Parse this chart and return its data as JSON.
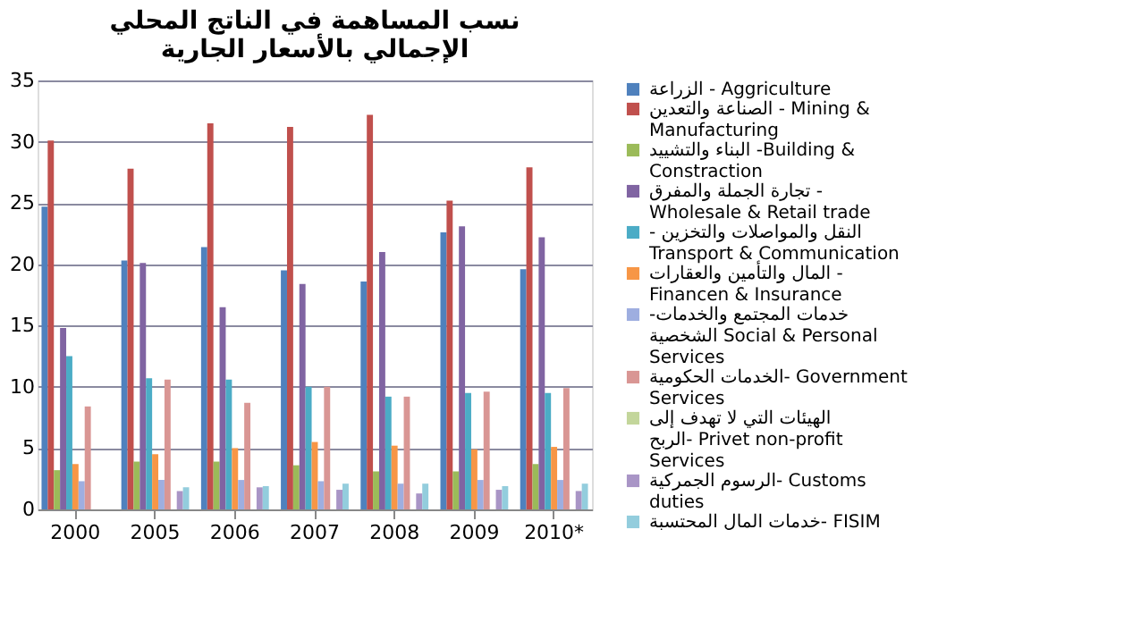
{
  "chart_data": {
    "type": "bar",
    "title": "نسب المساهمة في الناتج المحلي الإجمالي بالأسعار الجارية",
    "categories": [
      "2000",
      "2005",
      "2006",
      "2007",
      "2008",
      "2009",
      "2010*"
    ],
    "ylim": [
      0,
      35
    ],
    "yticks": [
      0,
      5,
      10,
      15,
      20,
      25,
      30,
      35
    ],
    "grid": "y",
    "legend": "right",
    "series": [
      {
        "name": "الزراعة - Aggriculture",
        "color": "#4f81bd",
        "values": [
          24.7,
          20.3,
          21.4,
          19.5,
          18.6,
          22.6,
          19.6
        ]
      },
      {
        "name": "الصناعة والتعدين - Mining & Manufacturing",
        "color": "#c0504d",
        "values": [
          30.1,
          27.8,
          31.5,
          31.2,
          32.2,
          25.2,
          27.9
        ]
      },
      {
        "name": "البناء والتشييد -Building & Constraction",
        "color": "#9bbb59",
        "values": [
          3.2,
          3.9,
          3.9,
          3.6,
          3.1,
          3.1,
          3.7
        ]
      },
      {
        "name": "تجارة الجملة والمفرق  - Wholesale & Retail trade",
        "color": "#8064a2",
        "values": [
          14.8,
          20.1,
          16.5,
          18.4,
          21.0,
          23.1,
          22.2
        ]
      },
      {
        "name": "- النقل والمواصلات والتخزين Transport & Communication",
        "color": "#4bacc6",
        "values": [
          12.5,
          10.7,
          10.6,
          10.0,
          9.2,
          9.5,
          9.5
        ]
      },
      {
        "name": "المال والتأمين والعقارات - Financen & Insurance",
        "color": "#f79646",
        "values": [
          3.7,
          4.5,
          5.0,
          5.5,
          5.2,
          4.9,
          5.1
        ]
      },
      {
        "name": "-خدمات المجتمع والخدمات الشخصية Social & Personal Services",
        "color": "#9eaee0",
        "values": [
          2.3,
          2.4,
          2.4,
          2.3,
          2.1,
          2.4,
          2.4
        ]
      },
      {
        "name": "الخدمات الحكومية- Government Services",
        "color": "#d99694",
        "values": [
          8.4,
          10.6,
          8.7,
          10.0,
          9.2,
          9.6,
          9.9
        ]
      },
      {
        "name": "الهيئات التي لا تهدف إلى الربح- Privet non-profit Services",
        "color": "#c3d69b",
        "values": [
          null,
          null,
          null,
          null,
          null,
          null,
          null
        ]
      },
      {
        "name": "الرسوم الجمركية- Customs duties",
        "color": "#a995c6",
        "values": [
          null,
          1.5,
          1.8,
          1.6,
          1.3,
          1.6,
          1.5
        ]
      },
      {
        "name": "خدمات المال المحتسبة- FISIM",
        "color": "#93cddd",
        "values": [
          null,
          1.8,
          1.9,
          2.1,
          2.1,
          1.9,
          2.1
        ]
      }
    ]
  }
}
